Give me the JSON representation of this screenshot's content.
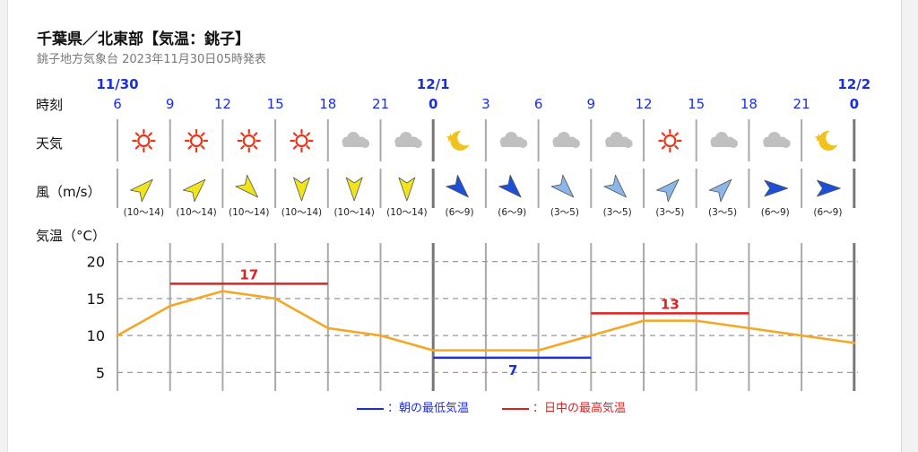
{
  "header": {
    "title": "千葉県／北東部【気温：銚子】",
    "subtitle": "銚子地方気象台 2023年11月30日05時発表"
  },
  "row_labels": {
    "time": "時刻",
    "weather": "天気",
    "wind": "風（m/s）",
    "temp": "気温（°C）"
  },
  "legend": {
    "min": "：朝の最低気温",
    "max": "：日中の最高気温"
  },
  "colors": {
    "temp_line": "#f5a623",
    "min_line": "#1a2ee6",
    "max_line": "#e02020",
    "date_label": "#1a2ee6",
    "sun": "#e8351b",
    "cloud": "#c0c0c0",
    "moon": "#f0c21b",
    "wind_strong": "#f0e41c",
    "wind_mid": "#1c4fd8",
    "wind_weak": "#8ab7e8"
  },
  "chart_data": {
    "type": "line",
    "date_labels": [
      {
        "index": 0,
        "text": "11/30"
      },
      {
        "index": 6,
        "text": "12/1"
      },
      {
        "index": 14,
        "text": "12/2"
      }
    ],
    "hours": [
      "6",
      "9",
      "12",
      "15",
      "18",
      "21",
      "0",
      "3",
      "6",
      "9",
      "12",
      "15",
      "18",
      "21",
      "0"
    ],
    "weather": [
      "sunny-icon",
      "sunny-icon",
      "sunny-icon",
      "sunny-icon",
      "cloudy-icon",
      "cloudy-icon",
      "moon-icon",
      "cloudy-icon",
      "cloudy-icon",
      "cloudy-icon",
      "sunny-icon",
      "cloudy-icon",
      "cloudy-icon",
      "moon-icon"
    ],
    "wind": [
      {
        "range": "(10〜14)",
        "strength": "strong",
        "towards": "northeast"
      },
      {
        "range": "(10〜14)",
        "strength": "strong",
        "towards": "northeast"
      },
      {
        "range": "(10〜14)",
        "strength": "strong",
        "towards": "southeast"
      },
      {
        "range": "(10〜14)",
        "strength": "strong",
        "towards": "south"
      },
      {
        "range": "(10〜14)",
        "strength": "strong",
        "towards": "south"
      },
      {
        "range": "(10〜14)",
        "strength": "strong",
        "towards": "south"
      },
      {
        "range": "(6〜9)",
        "strength": "mid",
        "towards": "southeast"
      },
      {
        "range": "(6〜9)",
        "strength": "mid",
        "towards": "southeast"
      },
      {
        "range": "(3〜5)",
        "strength": "weak",
        "towards": "southeast"
      },
      {
        "range": "(3〜5)",
        "strength": "weak",
        "towards": "southeast"
      },
      {
        "range": "(3〜5)",
        "strength": "weak",
        "towards": "northeast"
      },
      {
        "range": "(3〜5)",
        "strength": "weak",
        "towards": "northeast"
      },
      {
        "range": "(6〜9)",
        "strength": "mid",
        "towards": "east"
      },
      {
        "range": "(6〜9)",
        "strength": "mid",
        "towards": "east"
      }
    ],
    "temperature": [
      10,
      14,
      16,
      15,
      11,
      10,
      8,
      8,
      8,
      10,
      12,
      12,
      11,
      10,
      9
    ],
    "yticks": [
      5,
      10,
      15,
      20
    ],
    "ylim": [
      2.5,
      22.5
    ],
    "grid": true,
    "max_temps": [
      {
        "value": 17,
        "from_index": 1,
        "to_index": 4
      },
      {
        "value": 13,
        "from_index": 9,
        "to_index": 12
      }
    ],
    "min_temps": [
      {
        "value": 7,
        "from_index": 6,
        "to_index": 9
      }
    ]
  }
}
